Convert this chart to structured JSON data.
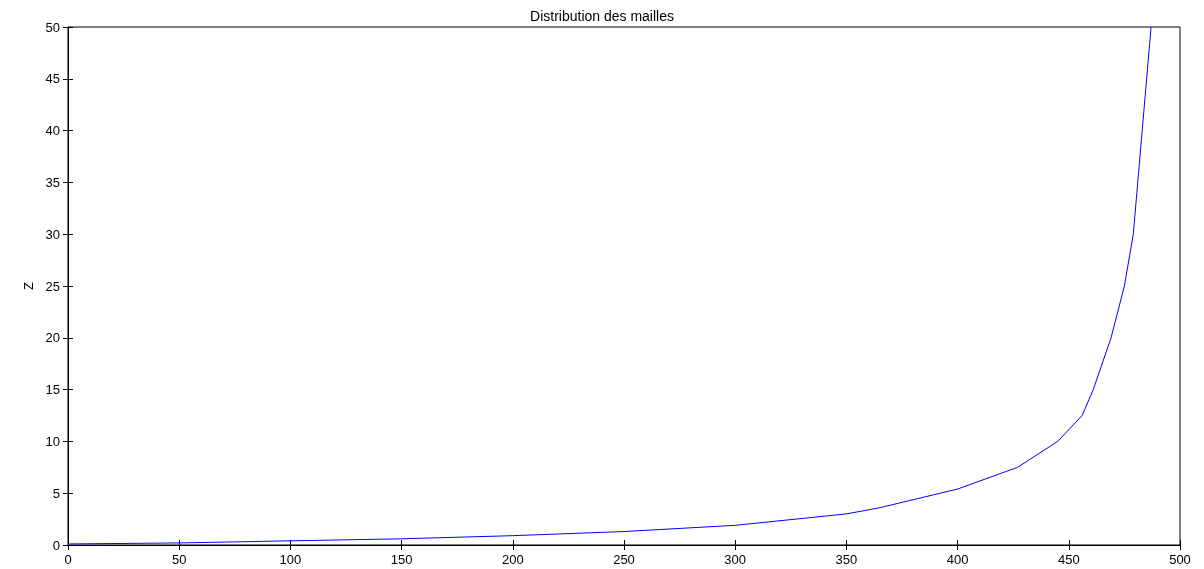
{
  "chart_data": {
    "type": "line",
    "title": "Distribution des mailles",
    "ylabel": "Z",
    "x": [
      0,
      50,
      100,
      150,
      200,
      250,
      300,
      350,
      365,
      400,
      427,
      445,
      456,
      461,
      469,
      475,
      479,
      481,
      483,
      485,
      487
    ],
    "series": [
      {
        "color": "#0000ff",
        "values": [
          0.1,
          0.2,
          0.4,
          0.6,
          0.9,
          1.3,
          1.9,
          3.0,
          3.6,
          5.4,
          7.5,
          10,
          12.5,
          15,
          20,
          25,
          30,
          35,
          40,
          45,
          50
        ]
      }
    ],
    "xlim": [
      0,
      500
    ],
    "xticks": [
      0,
      50,
      100,
      150,
      200,
      250,
      300,
      350,
      400,
      450,
      500
    ],
    "ylim": [
      0,
      50
    ],
    "yticks": [
      0,
      5,
      10,
      15,
      20,
      25,
      30,
      35,
      40,
      45,
      50
    ],
    "grid": false,
    "marker": "none",
    "line_style": "solid"
  }
}
